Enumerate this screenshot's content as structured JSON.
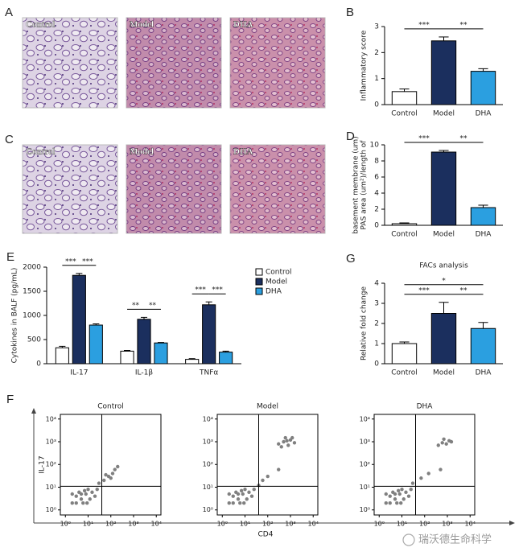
{
  "images": [
    {
      "panel": "A",
      "labels": [
        "Control",
        "Model",
        "DHA"
      ]
    },
    {
      "panel": "C",
      "labels": [
        "Control",
        "Model",
        "DHA"
      ]
    }
  ],
  "watermark": "瑞沃德生命科学",
  "chart_data": [
    {
      "type": "bar",
      "panel": "B",
      "ylabel": [
        "Inflammatory score"
      ],
      "categories": [
        "Control",
        "Model",
        "DHA"
      ],
      "values": [
        0.5,
        2.45,
        1.28
      ],
      "errors": [
        0.1,
        0.15,
        0.1
      ],
      "colors": [
        "#ffffff",
        "#1b2f5e",
        "#2b9fe0"
      ],
      "ylim": [
        0,
        3
      ],
      "yticks": [
        0,
        1,
        2,
        3
      ],
      "significance": [
        {
          "pair": [
            "Control",
            "Model"
          ],
          "label": "***"
        },
        {
          "pair": [
            "Model",
            "DHA"
          ],
          "label": "**"
        }
      ]
    },
    {
      "type": "bar",
      "panel": "D",
      "ylabel": [
        "PAS area (um²)/length of",
        "basement membrane (um)"
      ],
      "categories": [
        "Control",
        "Model",
        "DHA"
      ],
      "values": [
        0.2,
        9.1,
        2.2
      ],
      "errors": [
        0.1,
        0.2,
        0.3
      ],
      "colors": [
        "#ffffff",
        "#1b2f5e",
        "#2b9fe0"
      ],
      "ylim": [
        0,
        10
      ],
      "yticks": [
        0,
        2,
        4,
        6,
        8,
        10
      ],
      "significance": [
        {
          "pair": [
            "Control",
            "Model"
          ],
          "label": "***"
        },
        {
          "pair": [
            "Model",
            "DHA"
          ],
          "label": "**"
        }
      ]
    },
    {
      "type": "grouped_bar",
      "panel": "E",
      "ylabel": [
        "Cytokines in BALF (pg/mL)"
      ],
      "categories": [
        "IL-17",
        "IL-1β",
        "TNFα"
      ],
      "series": [
        {
          "name": "Control",
          "color": "#ffffff",
          "values": [
            330,
            260,
            90
          ],
          "errors": [
            30,
            15,
            15
          ]
        },
        {
          "name": "Model",
          "color": "#1b2f5e",
          "values": [
            1830,
            920,
            1220
          ],
          "errors": [
            40,
            40,
            60
          ]
        },
        {
          "name": "DHA",
          "color": "#2b9fe0",
          "values": [
            800,
            430,
            240
          ],
          "errors": [
            25,
            10,
            20
          ]
        }
      ],
      "ylim": [
        0,
        2000
      ],
      "yticks": [
        0,
        500,
        1000,
        1500,
        2000
      ],
      "legend": "top-right",
      "significance": [
        [
          {
            "pair": [
              "Control",
              "Model"
            ],
            "label": "***"
          },
          {
            "pair": [
              "Model",
              "DHA"
            ],
            "label": "***"
          }
        ],
        [
          {
            "pair": [
              "Control",
              "Model"
            ],
            "label": "**"
          },
          {
            "pair": [
              "Model",
              "DHA"
            ],
            "label": "**"
          }
        ],
        [
          {
            "pair": [
              "Control",
              "Model"
            ],
            "label": "***"
          },
          {
            "pair": [
              "Model",
              "DHA"
            ],
            "label": "***"
          }
        ]
      ]
    },
    {
      "type": "bar",
      "panel": "G",
      "title": "FACs analysis",
      "ylabel": [
        "Relative fold change"
      ],
      "categories": [
        "Control",
        "Model",
        "DHA"
      ],
      "values": [
        1.0,
        2.5,
        1.75
      ],
      "errors": [
        0.08,
        0.55,
        0.3
      ],
      "colors": [
        "#ffffff",
        "#1b2f5e",
        "#2b9fe0"
      ],
      "ylim": [
        0,
        4
      ],
      "yticks": [
        0,
        1,
        2,
        3,
        4
      ],
      "significance": [
        {
          "pair": [
            "Control",
            "Model"
          ],
          "label": "***"
        },
        {
          "pair": [
            "Model",
            "DHA"
          ],
          "label": "**"
        },
        {
          "pair": [
            "Control",
            "DHA"
          ],
          "label": "*"
        }
      ]
    },
    {
      "type": "scatter",
      "panel": "F",
      "xlabel": "CD4",
      "ylabel": "IL-17",
      "log": true,
      "color": "#808080",
      "xlim": [
        0.6,
        16000
      ],
      "ylim": [
        0.6,
        16000
      ],
      "xticks": [
        {
          "value": 1,
          "label": "10⁰"
        },
        {
          "value": 10,
          "label": "10¹"
        },
        {
          "value": 100,
          "label": "10²"
        },
        {
          "value": 1000,
          "label": "10³"
        },
        {
          "value": 10000,
          "label": "10⁴"
        }
      ],
      "yticks": [
        {
          "value": 1,
          "label": "10⁰"
        },
        {
          "value": 10,
          "label": "10¹"
        },
        {
          "value": 100,
          "label": "10²"
        },
        {
          "value": 1000,
          "label": "10³"
        },
        {
          "value": 10000,
          "label": "10⁴"
        }
      ],
      "gates": {
        "x": 40,
        "y": 11
      },
      "panels": [
        {
          "title": "Control",
          "points": [
            [
              2,
              2
            ],
            [
              3,
              4
            ],
            [
              5,
              3
            ],
            [
              8,
              5
            ],
            [
              4,
              6
            ],
            [
              10,
              8
            ],
            [
              6,
              2
            ],
            [
              15,
              6
            ],
            [
              20,
              4
            ],
            [
              3,
              2
            ],
            [
              12,
              3
            ],
            [
              7,
              7
            ],
            [
              25,
              8
            ],
            [
              2,
              5
            ],
            [
              9,
              2
            ],
            [
              5,
              5
            ],
            [
              30,
              15
            ],
            [
              50,
              20
            ],
            [
              80,
              30
            ],
            [
              120,
              40
            ],
            [
              60,
              35
            ],
            [
              150,
              60
            ],
            [
              200,
              80
            ],
            [
              100,
              25
            ]
          ]
        },
        {
          "title": "Model",
          "points": [
            [
              2,
              2
            ],
            [
              3,
              4
            ],
            [
              5,
              3
            ],
            [
              8,
              5
            ],
            [
              4,
              6
            ],
            [
              10,
              8
            ],
            [
              6,
              2
            ],
            [
              15,
              6
            ],
            [
              20,
              4
            ],
            [
              3,
              2
            ],
            [
              12,
              3
            ],
            [
              7,
              7
            ],
            [
              25,
              8
            ],
            [
              2,
              5
            ],
            [
              9,
              2
            ],
            [
              5,
              5
            ],
            [
              40,
              12
            ],
            [
              60,
              20
            ],
            [
              100,
              30
            ],
            [
              300,
              60
            ],
            [
              300,
              800
            ],
            [
              500,
              1000
            ],
            [
              800,
              700
            ],
            [
              1000,
              1200
            ],
            [
              600,
              1500
            ],
            [
              1500,
              900
            ],
            [
              400,
              600
            ],
            [
              1200,
              1500
            ],
            [
              700,
              1100
            ]
          ]
        },
        {
          "title": "DHA",
          "points": [
            [
              2,
              2
            ],
            [
              3,
              4
            ],
            [
              5,
              3
            ],
            [
              8,
              5
            ],
            [
              4,
              6
            ],
            [
              10,
              8
            ],
            [
              6,
              2
            ],
            [
              15,
              6
            ],
            [
              20,
              4
            ],
            [
              3,
              2
            ],
            [
              12,
              3
            ],
            [
              7,
              7
            ],
            [
              25,
              8
            ],
            [
              2,
              5
            ],
            [
              9,
              2
            ],
            [
              5,
              5
            ],
            [
              30,
              15
            ],
            [
              70,
              25
            ],
            [
              150,
              40
            ],
            [
              500,
              60
            ],
            [
              400,
              700
            ],
            [
              600,
              900
            ],
            [
              900,
              800
            ],
            [
              1200,
              1100
            ],
            [
              700,
              1300
            ],
            [
              1500,
              1000
            ]
          ]
        }
      ]
    }
  ]
}
